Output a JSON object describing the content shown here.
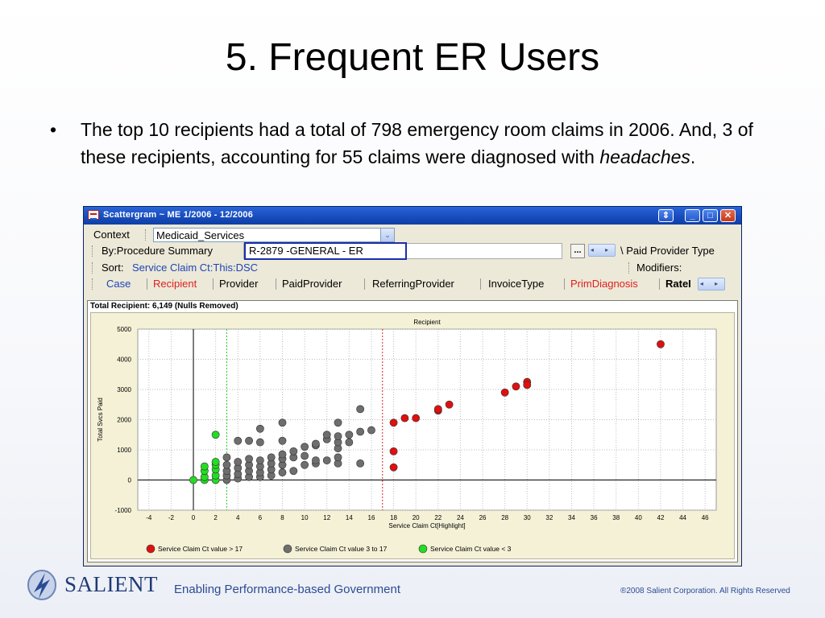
{
  "slide": {
    "title": "5. Frequent ER Users",
    "bullet_symbol": "•",
    "bullet_text_part1": "The top 10 recipients had a total of 798 emergency room claims in 2006. And, 3 of these recipients, accounting for 55 claims were diagnosed with ",
    "bullet_text_italic": "headaches",
    "bullet_text_end": "."
  },
  "window": {
    "title": "Scattergram ~ ME 1/2006 - 12/2006",
    "buttons": {
      "restore": "⇕",
      "minimize": "_",
      "maximize": "□",
      "close": "✕"
    },
    "context_label": "Context",
    "context_value": "Medicaid_Services",
    "dropdown_glyph": "⌄",
    "by_label": "By:Procedure Summary",
    "by_value": "R-2879     -GENERAL - ER",
    "ellipsis": "...",
    "scroll_arrows": "◂ ▸",
    "paid_provider_type": "\\ Paid Provider Type",
    "sort_label": "Sort:",
    "sort_value": "Service Claim Ct:This:DSC",
    "modifiers": "Modifiers:",
    "tabs": [
      "Case",
      "Recipient",
      "Provider",
      "PaidProvider",
      "ReferringProvider",
      "InvoiceType",
      "PrimDiagnosis",
      "RateI"
    ],
    "total_recipient": "Total Recipient: 6,149  (Nulls Removed)"
  },
  "chart_data": {
    "type": "scatter",
    "title": "Recipient",
    "xlabel": "Service Claim Ct[Highlight]",
    "ylabel": "Total Svcs Paid",
    "xlim": [
      -5,
      47
    ],
    "ylim": [
      -1000,
      5000
    ],
    "x_ticks": [
      -4,
      -2,
      0,
      2,
      4,
      6,
      8,
      10,
      12,
      14,
      16,
      18,
      20,
      22,
      24,
      26,
      28,
      30,
      32,
      34,
      36,
      38,
      40,
      42,
      44,
      46
    ],
    "y_ticks": [
      -1000,
      0,
      1000,
      2000,
      3000,
      4000,
      5000
    ],
    "grid": true,
    "reference_lines": [
      {
        "x": 3,
        "color": "#22cc22"
      },
      {
        "x": 17,
        "color": "#dd2222"
      }
    ],
    "legend_position": "bottom-left",
    "series": [
      {
        "name": "Service Claim Ct value > 17",
        "color": "#e01010",
        "points": [
          [
            18,
            1900
          ],
          [
            18,
            950
          ],
          [
            18,
            420
          ],
          [
            19,
            2050
          ],
          [
            20,
            2050
          ],
          [
            22,
            2300
          ],
          [
            22,
            2350
          ],
          [
            23,
            2500
          ],
          [
            28,
            2900
          ],
          [
            29,
            3100
          ],
          [
            30,
            3250
          ],
          [
            30,
            3150
          ],
          [
            42,
            4500
          ]
        ]
      },
      {
        "name": "Service Claim Ct value  3 to 17",
        "color": "#6e6e6e",
        "points": [
          [
            3,
            0
          ],
          [
            3,
            150
          ],
          [
            3,
            300
          ],
          [
            3,
            500
          ],
          [
            3,
            750
          ],
          [
            4,
            50
          ],
          [
            4,
            200
          ],
          [
            4,
            400
          ],
          [
            4,
            600
          ],
          [
            4,
            1300
          ],
          [
            5,
            100
          ],
          [
            5,
            300
          ],
          [
            5,
            500
          ],
          [
            5,
            700
          ],
          [
            5,
            1300
          ],
          [
            6,
            100
          ],
          [
            6,
            250
          ],
          [
            6,
            450
          ],
          [
            6,
            650
          ],
          [
            6,
            1250
          ],
          [
            6,
            1700
          ],
          [
            7,
            150
          ],
          [
            7,
            350
          ],
          [
            7,
            550
          ],
          [
            7,
            750
          ],
          [
            8,
            250
          ],
          [
            8,
            500
          ],
          [
            8,
            700
          ],
          [
            8,
            850
          ],
          [
            8,
            1300
          ],
          [
            8,
            1900
          ],
          [
            9,
            300
          ],
          [
            9,
            750
          ],
          [
            9,
            950
          ],
          [
            10,
            500
          ],
          [
            10,
            800
          ],
          [
            10,
            1100
          ],
          [
            11,
            550
          ],
          [
            11,
            650
          ],
          [
            11,
            1150
          ],
          [
            11,
            1200
          ],
          [
            12,
            650
          ],
          [
            12,
            1350
          ],
          [
            12,
            1500
          ],
          [
            13,
            550
          ],
          [
            13,
            750
          ],
          [
            13,
            1050
          ],
          [
            13,
            1250
          ],
          [
            13,
            1450
          ],
          [
            13,
            1900
          ],
          [
            14,
            1250
          ],
          [
            14,
            1500
          ],
          [
            15,
            550
          ],
          [
            15,
            1600
          ],
          [
            15,
            2350
          ],
          [
            16,
            1650
          ]
        ]
      },
      {
        "name": "Service Claim Ct value < 3",
        "color": "#22dd22",
        "points": [
          [
            0,
            0
          ],
          [
            1,
            0
          ],
          [
            1,
            100
          ],
          [
            1,
            300
          ],
          [
            1,
            450
          ],
          [
            2,
            0
          ],
          [
            2,
            150
          ],
          [
            2,
            350
          ],
          [
            2,
            500
          ],
          [
            2,
            600
          ],
          [
            2,
            1500
          ]
        ]
      }
    ]
  },
  "footer": {
    "brand": "SALIENT",
    "tagline": "Enabling Performance-based Government",
    "copyright": "®2008 Salient Corporation. All Rights Reserved"
  }
}
